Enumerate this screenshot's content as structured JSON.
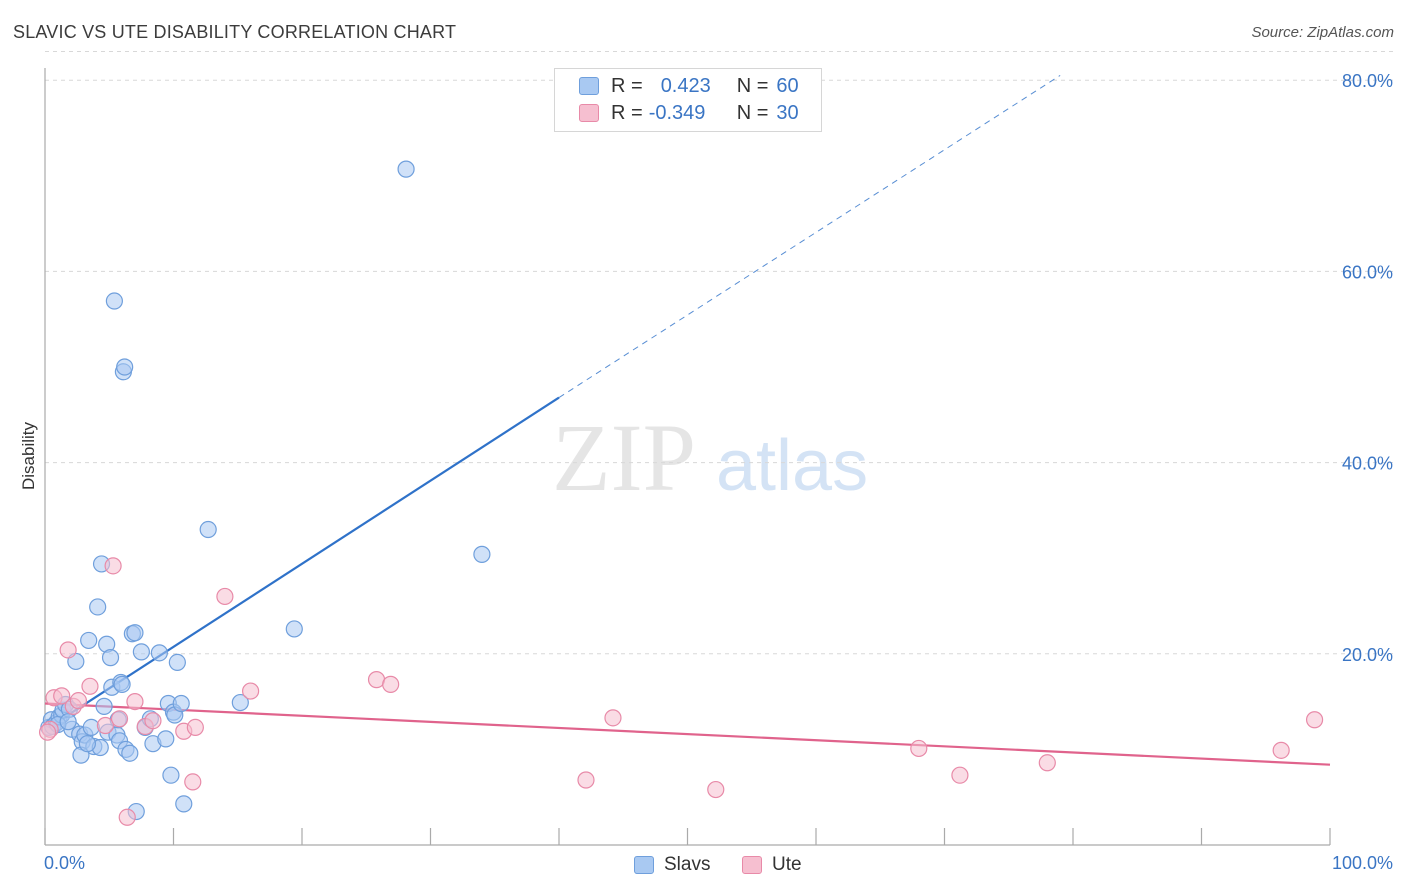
{
  "title": "SLAVIC VS UTE DISABILITY CORRELATION CHART",
  "source": "Source: ZipAtlas.com",
  "watermark": {
    "zip": "ZIP",
    "atlas": "atlas"
  },
  "legend_stats": [
    {
      "r_label": "R =",
      "r_value": "0.423",
      "n_label": "N =",
      "n_value": "60",
      "color": "#a9c9f2",
      "border": "#6f9fdc"
    },
    {
      "r_label": "R =",
      "r_value": "-0.349",
      "n_label": "N =",
      "n_value": "30",
      "color": "#f6bfd0",
      "border": "#e88aa8"
    }
  ],
  "bottom_legend": [
    {
      "label": "Slavs",
      "color": "#a9c9f2",
      "border": "#6f9fdc"
    },
    {
      "label": "Ute",
      "color": "#f6bfd0",
      "border": "#e88aa8"
    }
  ],
  "chart_data": {
    "type": "scatter",
    "title": "SLAVIC VS UTE DISABILITY CORRELATION CHART",
    "xlabel": "",
    "ylabel": "Disability",
    "xlim": [
      0,
      100
    ],
    "ylim": [
      0,
      83
    ],
    "x_tick_labels": [
      "0.0%",
      "100.0%"
    ],
    "y_ticks": [
      20,
      40,
      60,
      80
    ],
    "y_tick_labels": [
      "20.0%",
      "40.0%",
      "60.0%",
      "80.0%"
    ],
    "grid": true,
    "series": [
      {
        "name": "Slavs",
        "color": "#6f9fdc",
        "fill": "#a9c9f2",
        "trend_color": "#2f72c9",
        "trend": {
          "x0": 0.3,
          "y0": 12.3,
          "x1": 40,
          "y1": 46.8,
          "dash_to_x": 79,
          "dash_to_y": 80.5
        },
        "points": [
          [
            0.3,
            12.3
          ],
          [
            0.5,
            13.1
          ],
          [
            0.6,
            12.4
          ],
          [
            0.9,
            12.8
          ],
          [
            1.1,
            13.4
          ],
          [
            1.3,
            13.6
          ],
          [
            1.4,
            14.1
          ],
          [
            1.6,
            14.7
          ],
          [
            1.9,
            14.2
          ],
          [
            2.1,
            12.1
          ],
          [
            2.4,
            19.2
          ],
          [
            2.7,
            11.6
          ],
          [
            2.9,
            10.8
          ],
          [
            3.1,
            11.5
          ],
          [
            3.4,
            21.4
          ],
          [
            3.6,
            12.3
          ],
          [
            3.8,
            10.3
          ],
          [
            4.1,
            24.9
          ],
          [
            4.3,
            10.2
          ],
          [
            4.4,
            29.4
          ],
          [
            4.6,
            14.5
          ],
          [
            4.8,
            21.0
          ],
          [
            4.9,
            11.8
          ],
          [
            5.1,
            19.6
          ],
          [
            5.2,
            16.5
          ],
          [
            5.4,
            56.9
          ],
          [
            5.6,
            11.5
          ],
          [
            5.7,
            13.1
          ],
          [
            5.8,
            10.9
          ],
          [
            5.9,
            17.0
          ],
          [
            6.0,
            16.8
          ],
          [
            6.1,
            49.5
          ],
          [
            6.2,
            50.0
          ],
          [
            6.3,
            10.0
          ],
          [
            6.6,
            9.6
          ],
          [
            6.8,
            22.1
          ],
          [
            7.0,
            22.2
          ],
          [
            7.1,
            3.5
          ],
          [
            7.5,
            20.2
          ],
          [
            7.8,
            12.3
          ],
          [
            8.4,
            10.6
          ],
          [
            8.9,
            20.1
          ],
          [
            9.4,
            11.1
          ],
          [
            9.6,
            14.8
          ],
          [
            9.8,
            7.3
          ],
          [
            10.0,
            13.9
          ],
          [
            10.1,
            13.6
          ],
          [
            10.3,
            19.1
          ],
          [
            10.6,
            14.8
          ],
          [
            10.8,
            4.3
          ],
          [
            12.7,
            33.0
          ],
          [
            15.2,
            14.9
          ],
          [
            19.4,
            22.6
          ],
          [
            28.1,
            70.7
          ],
          [
            34.0,
            30.4
          ],
          [
            2.8,
            9.4
          ],
          [
            1.0,
            12.6
          ],
          [
            3.3,
            10.6
          ],
          [
            8.2,
            13.2
          ],
          [
            1.8,
            12.9
          ]
        ]
      },
      {
        "name": "Ute",
        "color": "#e88aa8",
        "fill": "#f6bfd0",
        "trend_color": "#e0638c",
        "trend": {
          "x0": 0,
          "y0": 14.8,
          "x1": 100,
          "y1": 8.4
        },
        "points": [
          [
            0.4,
            12.1
          ],
          [
            0.7,
            15.4
          ],
          [
            1.3,
            15.6
          ],
          [
            1.8,
            20.4
          ],
          [
            2.2,
            14.5
          ],
          [
            3.5,
            16.6
          ],
          [
            4.7,
            12.5
          ],
          [
            5.3,
            29.2
          ],
          [
            5.8,
            13.2
          ],
          [
            6.4,
            2.9
          ],
          [
            7.0,
            15.0
          ],
          [
            7.8,
            12.4
          ],
          [
            8.4,
            13.0
          ],
          [
            10.8,
            11.9
          ],
          [
            11.5,
            6.6
          ],
          [
            11.7,
            12.3
          ],
          [
            14.0,
            26.0
          ],
          [
            16.0,
            16.1
          ],
          [
            25.8,
            17.3
          ],
          [
            26.9,
            16.8
          ],
          [
            44.2,
            13.3
          ],
          [
            42.1,
            6.8
          ],
          [
            52.2,
            5.8
          ],
          [
            68.0,
            10.1
          ],
          [
            71.2,
            7.3
          ],
          [
            78.0,
            8.6
          ],
          [
            96.2,
            9.9
          ],
          [
            98.8,
            13.1
          ],
          [
            0.2,
            11.8
          ],
          [
            2.6,
            15.1
          ]
        ]
      }
    ]
  }
}
